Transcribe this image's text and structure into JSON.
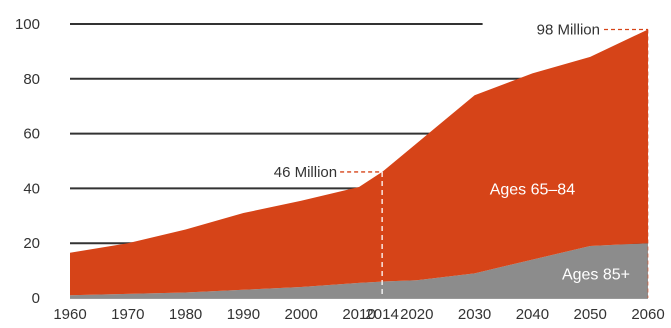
{
  "chart_data": {
    "type": "area",
    "stacked": true,
    "title": "",
    "xlabel": "",
    "ylabel": "",
    "x": [
      1960,
      1970,
      1980,
      1990,
      2000,
      2010,
      2014,
      2020,
      2030,
      2040,
      2050,
      2060
    ],
    "ylim": [
      0,
      100
    ],
    "yticks": [
      0,
      20,
      40,
      60,
      80,
      100
    ],
    "grid": true,
    "series": [
      {
        "name": "Ages 85+",
        "color": "#8c8c8c",
        "values": [
          1,
          1.5,
          2,
          3,
          4,
          5.5,
          6,
          6.5,
          9,
          14,
          19,
          20
        ]
      },
      {
        "name": "Ages 65–84",
        "color": "#d64418",
        "values": [
          15.5,
          18.5,
          23,
          28,
          31.5,
          35,
          40,
          50,
          65,
          68,
          69,
          78
        ]
      }
    ],
    "totals": [
      16.5,
      20,
      25,
      31,
      35.5,
      40.5,
      46,
      56.5,
      74,
      82,
      88,
      98
    ],
    "annotations": [
      {
        "x": 2014,
        "value": 46,
        "text": "46 Million"
      },
      {
        "x": 2060,
        "value": 98,
        "text": "98 Million"
      }
    ],
    "legend": "inline"
  }
}
